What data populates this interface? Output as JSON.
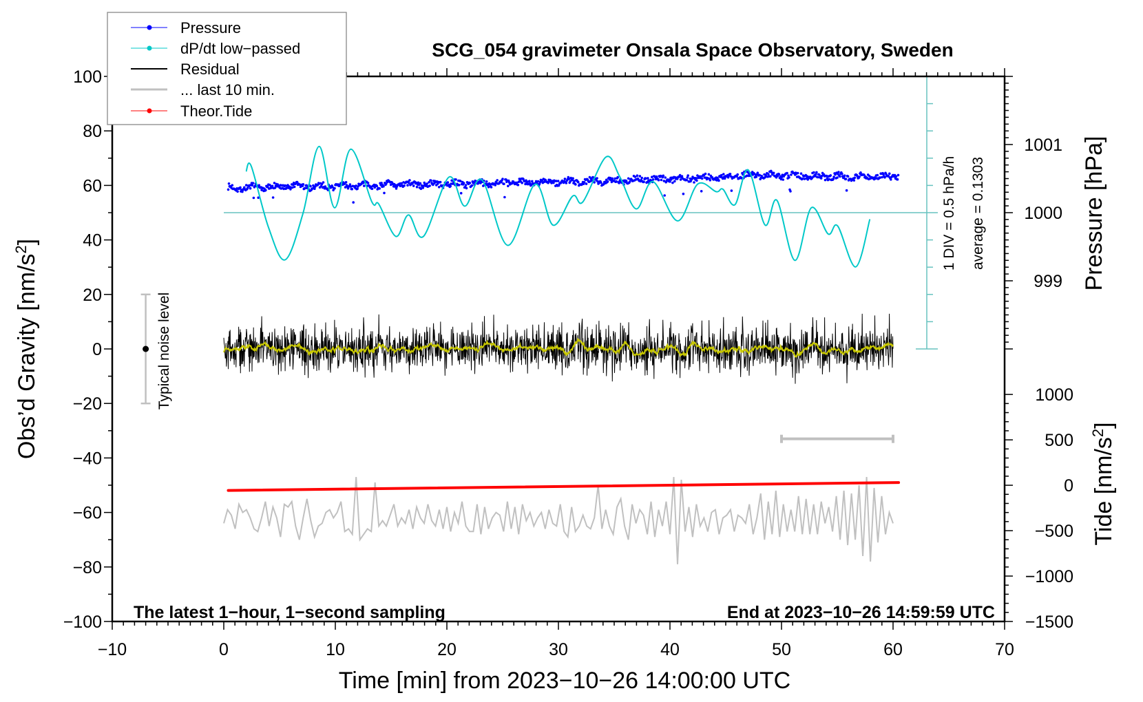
{
  "chart_data": {
    "type": "line",
    "title": "SCG_054 gravimeter Onsala Space Observatory, Sweden",
    "xlabel": "Time [min] from 2023−10−26 14:00:00 UTC",
    "ylabel": {
      "text": "Obs’d Gravity [nm/s",
      "sup": "2",
      "end": "]"
    },
    "xlim": [
      -10,
      70
    ],
    "ylim": [
      -100,
      100
    ],
    "xticks": [
      "−10",
      "0",
      "10",
      "20",
      "30",
      "40",
      "50",
      "60",
      "70"
    ],
    "xtick_values": [
      -10,
      0,
      10,
      20,
      30,
      40,
      50,
      60,
      70
    ],
    "yticks": [
      "100",
      "80",
      "60",
      "40",
      "20",
      "0",
      "−20",
      "−40",
      "−60",
      "−80",
      "−100"
    ],
    "ytick_values": [
      100,
      80,
      60,
      40,
      20,
      0,
      -20,
      -40,
      -60,
      -80,
      -100
    ],
    "grid": false,
    "pressure_axis": {
      "label": "Pressure [hPa]",
      "ticks": [
        "1001",
        "1000",
        "999"
      ],
      "tick_values": [
        1001,
        1000,
        999
      ],
      "gravity_per_hPa": 25,
      "hPa_at_gravity_50": 1000
    },
    "tide_axis": {
      "label": {
        "text": "Tide [nm/s",
        "sup": "2",
        "end": "]"
      },
      "ticks": [
        "1000",
        "500",
        "0",
        "−500",
        "−1000",
        "−1500"
      ],
      "tick_values": [
        1000,
        500,
        0,
        -500,
        -1000,
        -1500
      ],
      "range": [
        -1500,
        1000
      ]
    },
    "dpdt_scale": {
      "div_label": "1 DIV = 0.5 hPa/h",
      "average_label": "average = 0.1303",
      "hPa_per_h_per_div": 0.5,
      "average": 0.1303
    },
    "legend": {
      "position": "top-left",
      "items": [
        {
          "label": "Pressure",
          "color": "#0000ff",
          "marker": "dot"
        },
        {
          "label": "dP/dt low−passed",
          "color": "#00c8c8",
          "marker": "dot"
        },
        {
          "label": "Residual",
          "color": "#000000",
          "marker": "line"
        },
        {
          "label": "... last 10 min.",
          "color": "#c0c0c0",
          "marker": "line"
        },
        {
          "label": "Theor.Tide",
          "color": "#ff0000",
          "marker": "dot"
        }
      ]
    },
    "annotations": {
      "noise_label": "Typical noise level",
      "noise_range": [
        -20,
        20
      ],
      "noise_time": -7,
      "bottom_left": "The latest 1−hour, 1−second sampling",
      "bottom_right": "End at 2023−10−26 14:59:59 UTC",
      "last10_bar_minutes": [
        50,
        60
      ]
    },
    "series": {
      "pressure_hPa": {
        "color": "#0000ff",
        "t": [
          0.4,
          5,
          10,
          15,
          20,
          25,
          30,
          35,
          40,
          45,
          47,
          50,
          55,
          60.5
        ],
        "values": [
          1000.36,
          1000.38,
          1000.39,
          1000.41,
          1000.42,
          1000.44,
          1000.45,
          1000.47,
          1000.5,
          1000.52,
          1000.56,
          1000.55,
          1000.53,
          1000.53
        ]
      },
      "dpdt_hPa_per_h": {
        "color": "#00c8c8",
        "t": [
          2.0,
          2.47,
          4.0,
          5.5,
          7.1,
          8.54,
          9.94,
          11.38,
          13.27,
          13.9,
          15.43,
          16.56,
          17.9,
          20.17,
          21.6,
          23.15,
          25.47,
          27.9,
          29.53,
          31.28,
          32.2,
          34.26,
          35.5,
          36.98,
          38.48,
          40.68,
          42.49,
          44.14,
          44.75,
          45.82,
          47.02,
          48.52,
          49.59,
          51.2,
          52.67,
          54.18,
          55.04,
          56.65,
          57.92
        ],
        "values": [
          0.886,
          0.98,
          -0.135,
          -0.735,
          0.115,
          1.345,
          0.22,
          1.295,
          0.33,
          0.285,
          -0.305,
          0.09,
          -0.305,
          0.78,
          0.25,
          0.73,
          -0.47,
          0.65,
          -0.1,
          0.435,
          0.33,
          1.15,
          0.79,
          0.2,
          0.7,
          -0.02,
          0.655,
          0.515,
          0.56,
          0.275,
          0.915,
          -0.095,
          0.355,
          -0.745,
          0.22,
          -0.26,
          -0.115,
          -0.865,
          0.01
        ]
      },
      "residual_nm_s2": {
        "color": "#000000",
        "smoothed_color": "#c8c800",
        "t_range": [
          0,
          60
        ],
        "sampling_s": 1,
        "rms": 4.2,
        "peak_per_5min": [
          12,
          11,
          13,
          10,
          15,
          11,
          12,
          11,
          13,
          12,
          13,
          15
        ]
      },
      "last10_nm_s2": {
        "color": "#c0c0c0",
        "offset": -62,
        "values": [
          -2,
          3,
          1,
          -4,
          5,
          2,
          3,
          0,
          -4,
          -5,
          0,
          6,
          -3,
          4,
          0,
          -7,
          5,
          4,
          6,
          -3,
          -8,
          0,
          7,
          -1,
          -7,
          -3,
          -2,
          2,
          3,
          0,
          2,
          6,
          -5,
          -4,
          -6,
          15,
          -8,
          -6,
          -4,
          -5,
          13,
          -3,
          -1,
          -3,
          1,
          5,
          -3,
          0,
          -2,
          3,
          -4,
          4,
          0,
          -2,
          5,
          -1,
          -3,
          3,
          -4,
          4,
          -5,
          2,
          -2,
          6,
          -3,
          -5,
          -5,
          5,
          -6,
          4,
          -4,
          0,
          2,
          1,
          -5,
          6,
          -4,
          4,
          -6,
          5,
          -1,
          2,
          -3,
          0,
          2,
          -4,
          3,
          -2,
          -3,
          5,
          -5,
          -7,
          4,
          -5,
          -3,
          1,
          -3,
          -4,
          0,
          12,
          -4,
          3,
          -3,
          -6,
          4,
          7,
          -3,
          -8,
          5,
          -2,
          3,
          1,
          -6,
          6,
          -7,
          3,
          -3,
          6,
          -6,
          15,
          -17,
          14,
          -5,
          4,
          -7,
          5,
          -3,
          0,
          -5,
          2,
          3,
          -6,
          0,
          1,
          3,
          -5,
          1,
          0,
          -2,
          5,
          -6,
          0,
          9,
          -8,
          6,
          -6,
          10,
          -7,
          5,
          -5,
          3,
          -5,
          8,
          -6,
          7,
          -6,
          5,
          -6,
          6,
          -2,
          4,
          -5,
          8,
          -8,
          10,
          -10,
          9,
          -8,
          12,
          -14,
          15,
          -16,
          11,
          -9,
          8,
          -6,
          2,
          -2
        ]
      },
      "theor_tide_nm_s2": {
        "color": "#ff0000",
        "t": [
          0.4,
          60.5
        ],
        "values": [
          -57,
          30
        ]
      }
    }
  }
}
